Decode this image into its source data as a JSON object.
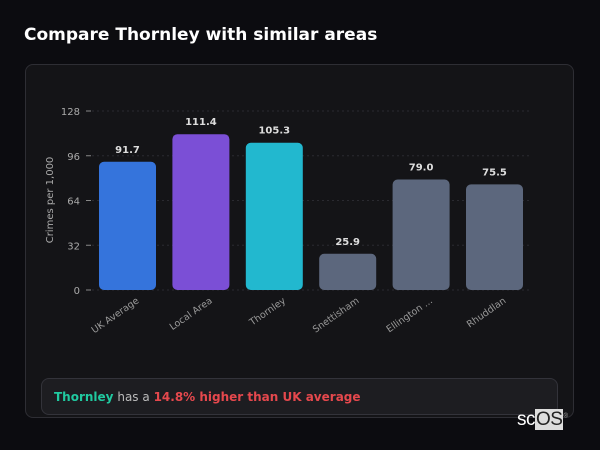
{
  "title": "Compare Thornley with similar areas",
  "chart_data": {
    "type": "bar",
    "title": "",
    "xlabel": "",
    "ylabel": "Crimes per 1,000",
    "ylim": [
      0,
      128
    ],
    "yticks": [
      0,
      32,
      64,
      96,
      128
    ],
    "grid": true,
    "categories": [
      "UK Average",
      "Local Area",
      "Thornley",
      "Snettisham",
      "Ellington ...",
      "Rhuddlan"
    ],
    "values": [
      91.7,
      111.4,
      105.3,
      25.9,
      79.0,
      75.5
    ],
    "value_labels": [
      "91.7",
      "111.4",
      "105.3",
      "25.9",
      "79.0",
      "75.5"
    ],
    "colors": [
      "#3574dc",
      "#7b4fd6",
      "#22b8cf",
      "#5c677d",
      "#5c677d",
      "#5c677d"
    ]
  },
  "footer": {
    "area": "Thornley",
    "connector": "has a",
    "comparison": "14.8% higher than UK average"
  },
  "logo": {
    "text1": "sc",
    "text2": "OS",
    "mark": "®"
  }
}
